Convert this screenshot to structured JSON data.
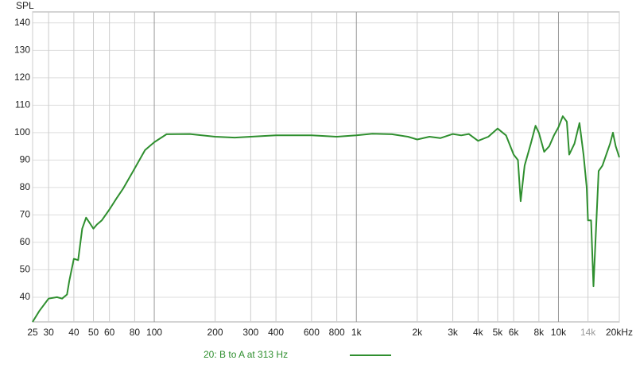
{
  "chart_data": {
    "type": "line",
    "y_label": "SPL",
    "xscale": "log",
    "grid": true,
    "xlim": [
      25,
      20000
    ],
    "ylim": [
      31,
      144
    ],
    "xticks": [
      25,
      30,
      40,
      50,
      60,
      80,
      100,
      200,
      300,
      400,
      600,
      800,
      {
        "value": 1000,
        "label": "1k"
      },
      {
        "value": 2000,
        "label": "2k"
      },
      {
        "value": 3000,
        "label": "3k"
      },
      {
        "value": 4000,
        "label": "4k"
      },
      {
        "value": 5000,
        "label": "5k"
      },
      {
        "value": 6000,
        "label": "6k"
      },
      {
        "value": 8000,
        "label": "8k"
      },
      {
        "value": 10000,
        "label": "10k"
      },
      {
        "value": 14000,
        "label": "14k",
        "color": "#9a9a9a"
      },
      {
        "value": 20000,
        "label": "20kHz"
      }
    ],
    "yticks": [
      40,
      50,
      60,
      70,
      80,
      90,
      100,
      110,
      120,
      130,
      140
    ],
    "x": [
      25,
      27,
      30,
      33,
      35,
      37,
      38,
      40,
      42,
      44,
      46,
      48,
      50,
      52,
      55,
      60,
      65,
      70,
      78,
      90,
      100,
      115,
      150,
      200,
      250,
      300,
      400,
      600,
      800,
      1000,
      1200,
      1500,
      1800,
      2000,
      2300,
      2600,
      3000,
      3300,
      3600,
      4000,
      4500,
      5000,
      5500,
      6000,
      6300,
      6500,
      6800,
      7300,
      7700,
      8000,
      8500,
      9000,
      9500,
      10000,
      10500,
      11000,
      11300,
      12000,
      12700,
      13300,
      13800,
      14000,
      14500,
      14900,
      15800,
      16500,
      18000,
      18600,
      19200,
      20000
    ],
    "series": [
      {
        "name": "20: B to A at 313 Hz",
        "color": "#2f8f2f",
        "values": [
          31,
          35,
          39.5,
          40,
          39.5,
          41,
          46,
          54,
          53.5,
          65,
          69,
          67,
          65,
          66.5,
          68,
          72,
          76,
          79.5,
          85.5,
          93.6,
          96.5,
          99.4,
          99.5,
          98.5,
          98.2,
          98.5,
          99,
          99,
          98.5,
          99,
          99.6,
          99.4,
          98.5,
          97.5,
          98.5,
          98,
          99.5,
          99,
          99.5,
          97,
          98.5,
          101.5,
          99,
          92,
          90,
          75,
          88,
          96,
          102.5,
          100,
          93,
          95,
          99,
          102,
          106,
          104,
          92,
          96,
          103.5,
          92,
          80,
          68,
          68,
          44,
          86,
          88,
          96,
          100,
          95,
          91
        ]
      }
    ]
  }
}
